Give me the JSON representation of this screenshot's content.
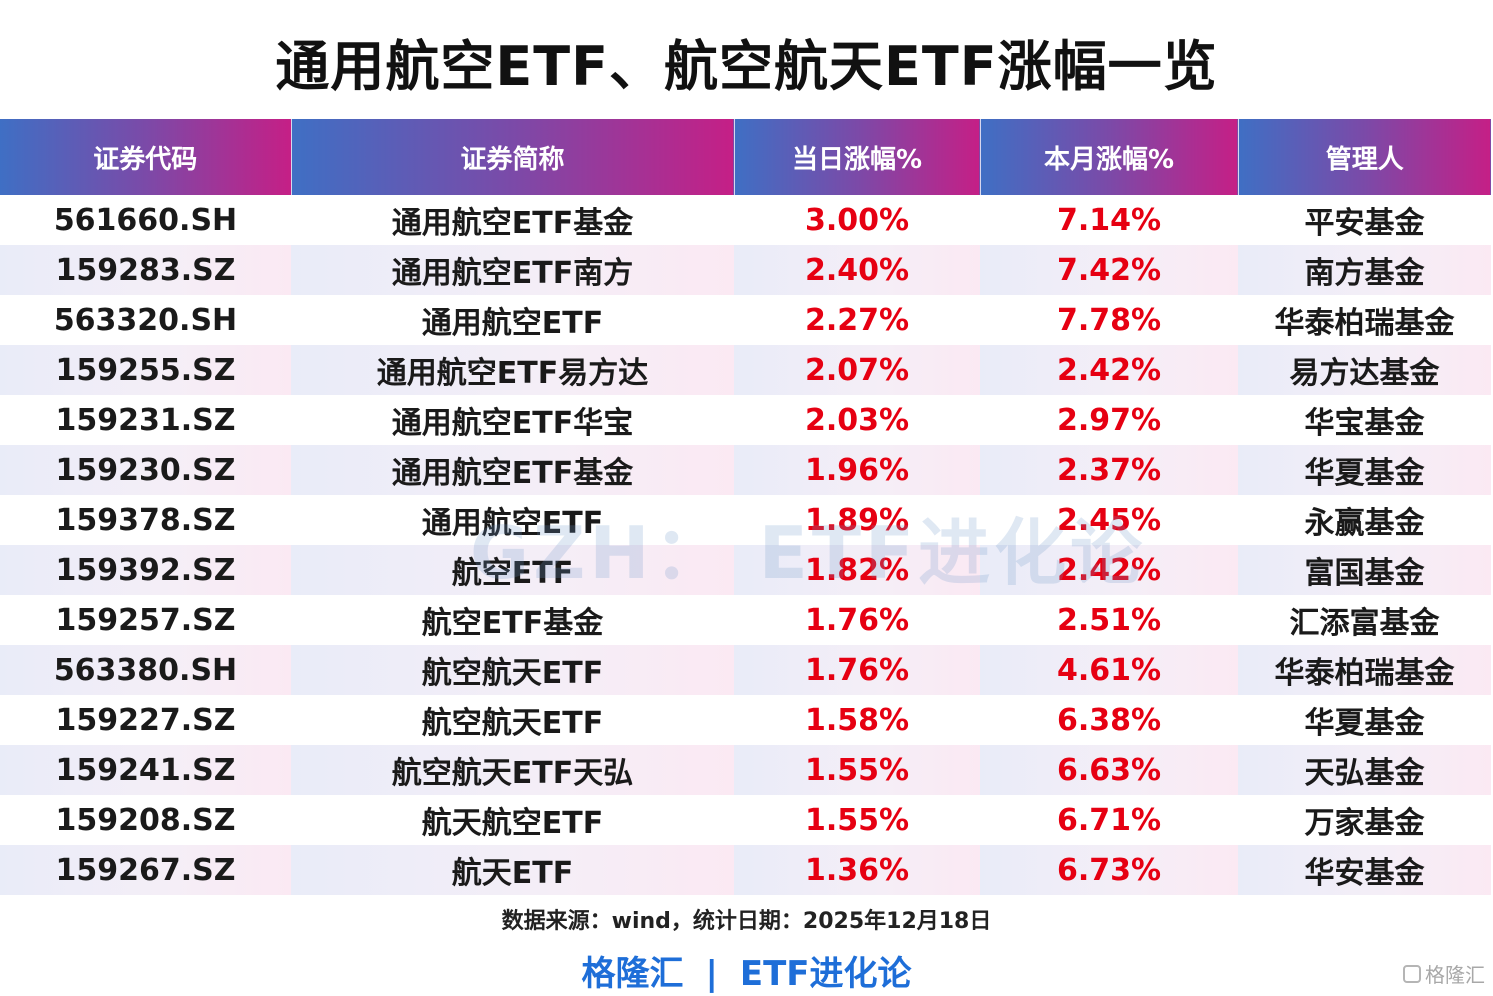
{
  "title": "通用航空ETF、航空航天ETF涨幅一览",
  "table": {
    "headers": [
      "证券代码",
      "证券简称",
      "当日涨幅%",
      "本月涨幅%",
      "管理人"
    ],
    "rows": [
      {
        "code": "561660.SH",
        "name": "通用航空ETF基金",
        "day": "3.00%",
        "month": "7.14%",
        "manager": "平安基金"
      },
      {
        "code": "159283.SZ",
        "name": "通用航空ETF南方",
        "day": "2.40%",
        "month": "7.42%",
        "manager": "南方基金"
      },
      {
        "code": "563320.SH",
        "name": "通用航空ETF",
        "day": "2.27%",
        "month": "7.78%",
        "manager": "华泰柏瑞基金"
      },
      {
        "code": "159255.SZ",
        "name": "通用航空ETF易方达",
        "day": "2.07%",
        "month": "2.42%",
        "manager": "易方达基金"
      },
      {
        "code": "159231.SZ",
        "name": "通用航空ETF华宝",
        "day": "2.03%",
        "month": "2.97%",
        "manager": "华宝基金"
      },
      {
        "code": "159230.SZ",
        "name": "通用航空ETF基金",
        "day": "1.96%",
        "month": "2.37%",
        "manager": "华夏基金"
      },
      {
        "code": "159378.SZ",
        "name": "通用航空ETF",
        "day": "1.89%",
        "month": "2.45%",
        "manager": "永赢基金"
      },
      {
        "code": "159392.SZ",
        "name": "航空ETF",
        "day": "1.82%",
        "month": "2.42%",
        "manager": "富国基金"
      },
      {
        "code": "159257.SZ",
        "name": "航空ETF基金",
        "day": "1.76%",
        "month": "2.51%",
        "manager": "汇添富基金"
      },
      {
        "code": "563380.SH",
        "name": "航空航天ETF",
        "day": "1.76%",
        "month": "4.61%",
        "manager": "华泰柏瑞基金"
      },
      {
        "code": "159227.SZ",
        "name": "航空航天ETF",
        "day": "1.58%",
        "month": "6.38%",
        "manager": "华夏基金"
      },
      {
        "code": "159241.SZ",
        "name": "航空航天ETF天弘",
        "day": "1.55%",
        "month": "6.63%",
        "manager": "天弘基金"
      },
      {
        "code": "159208.SZ",
        "name": "航天航空ETF",
        "day": "1.55%",
        "month": "6.71%",
        "manager": "万家基金"
      },
      {
        "code": "159267.SZ",
        "name": "航天ETF",
        "day": "1.36%",
        "month": "6.73%",
        "manager": "华安基金"
      }
    ]
  },
  "watermark": "GZH： ETF进化论",
  "source": "数据来源：wind，统计日期：2025年12月18日",
  "footer": {
    "brand": "格隆汇",
    "separator": "|",
    "account": "ETF进化论"
  },
  "corner_logo": "格隆汇",
  "colors": {
    "positive": "#e60012",
    "footer_blue": "#1e6ed8"
  }
}
